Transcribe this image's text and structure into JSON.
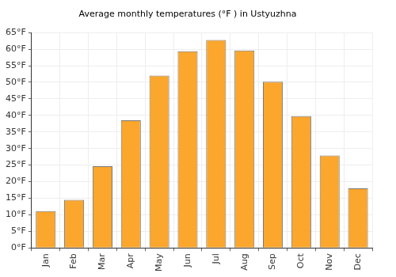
{
  "chart_data": {
    "type": "bar",
    "title": "Average monthly temperatures (°F ) in Ustyuzhna",
    "categories": [
      "Jan",
      "Feb",
      "Mar",
      "Apr",
      "May",
      "Jun",
      "Jul",
      "Aug",
      "Sep",
      "Oct",
      "Nov",
      "Dec"
    ],
    "values": [
      11.1,
      14.5,
      24.7,
      38.5,
      52.0,
      59.4,
      62.8,
      59.6,
      50.2,
      39.8,
      27.9,
      18.0
    ],
    "color": "#fba62c",
    "ylim": [
      0,
      65
    ],
    "yticks": [
      {
        "value": 0,
        "label": "0°F"
      },
      {
        "value": 5,
        "label": "5°F"
      },
      {
        "value": 10,
        "label": "10°F"
      },
      {
        "value": 15,
        "label": "15°F"
      },
      {
        "value": 20,
        "label": "20°F"
      },
      {
        "value": 25,
        "label": "25°F"
      },
      {
        "value": 30,
        "label": "30°F"
      },
      {
        "value": 35,
        "label": "35°F"
      },
      {
        "value": 40,
        "label": "40°F"
      },
      {
        "value": 45,
        "label": "45°F"
      },
      {
        "value": 50,
        "label": "50°F"
      },
      {
        "value": 55,
        "label": "55°F"
      },
      {
        "value": 60,
        "label": "60°F"
      },
      {
        "value": 65,
        "label": "65°F"
      }
    ],
    "grid": true
  }
}
